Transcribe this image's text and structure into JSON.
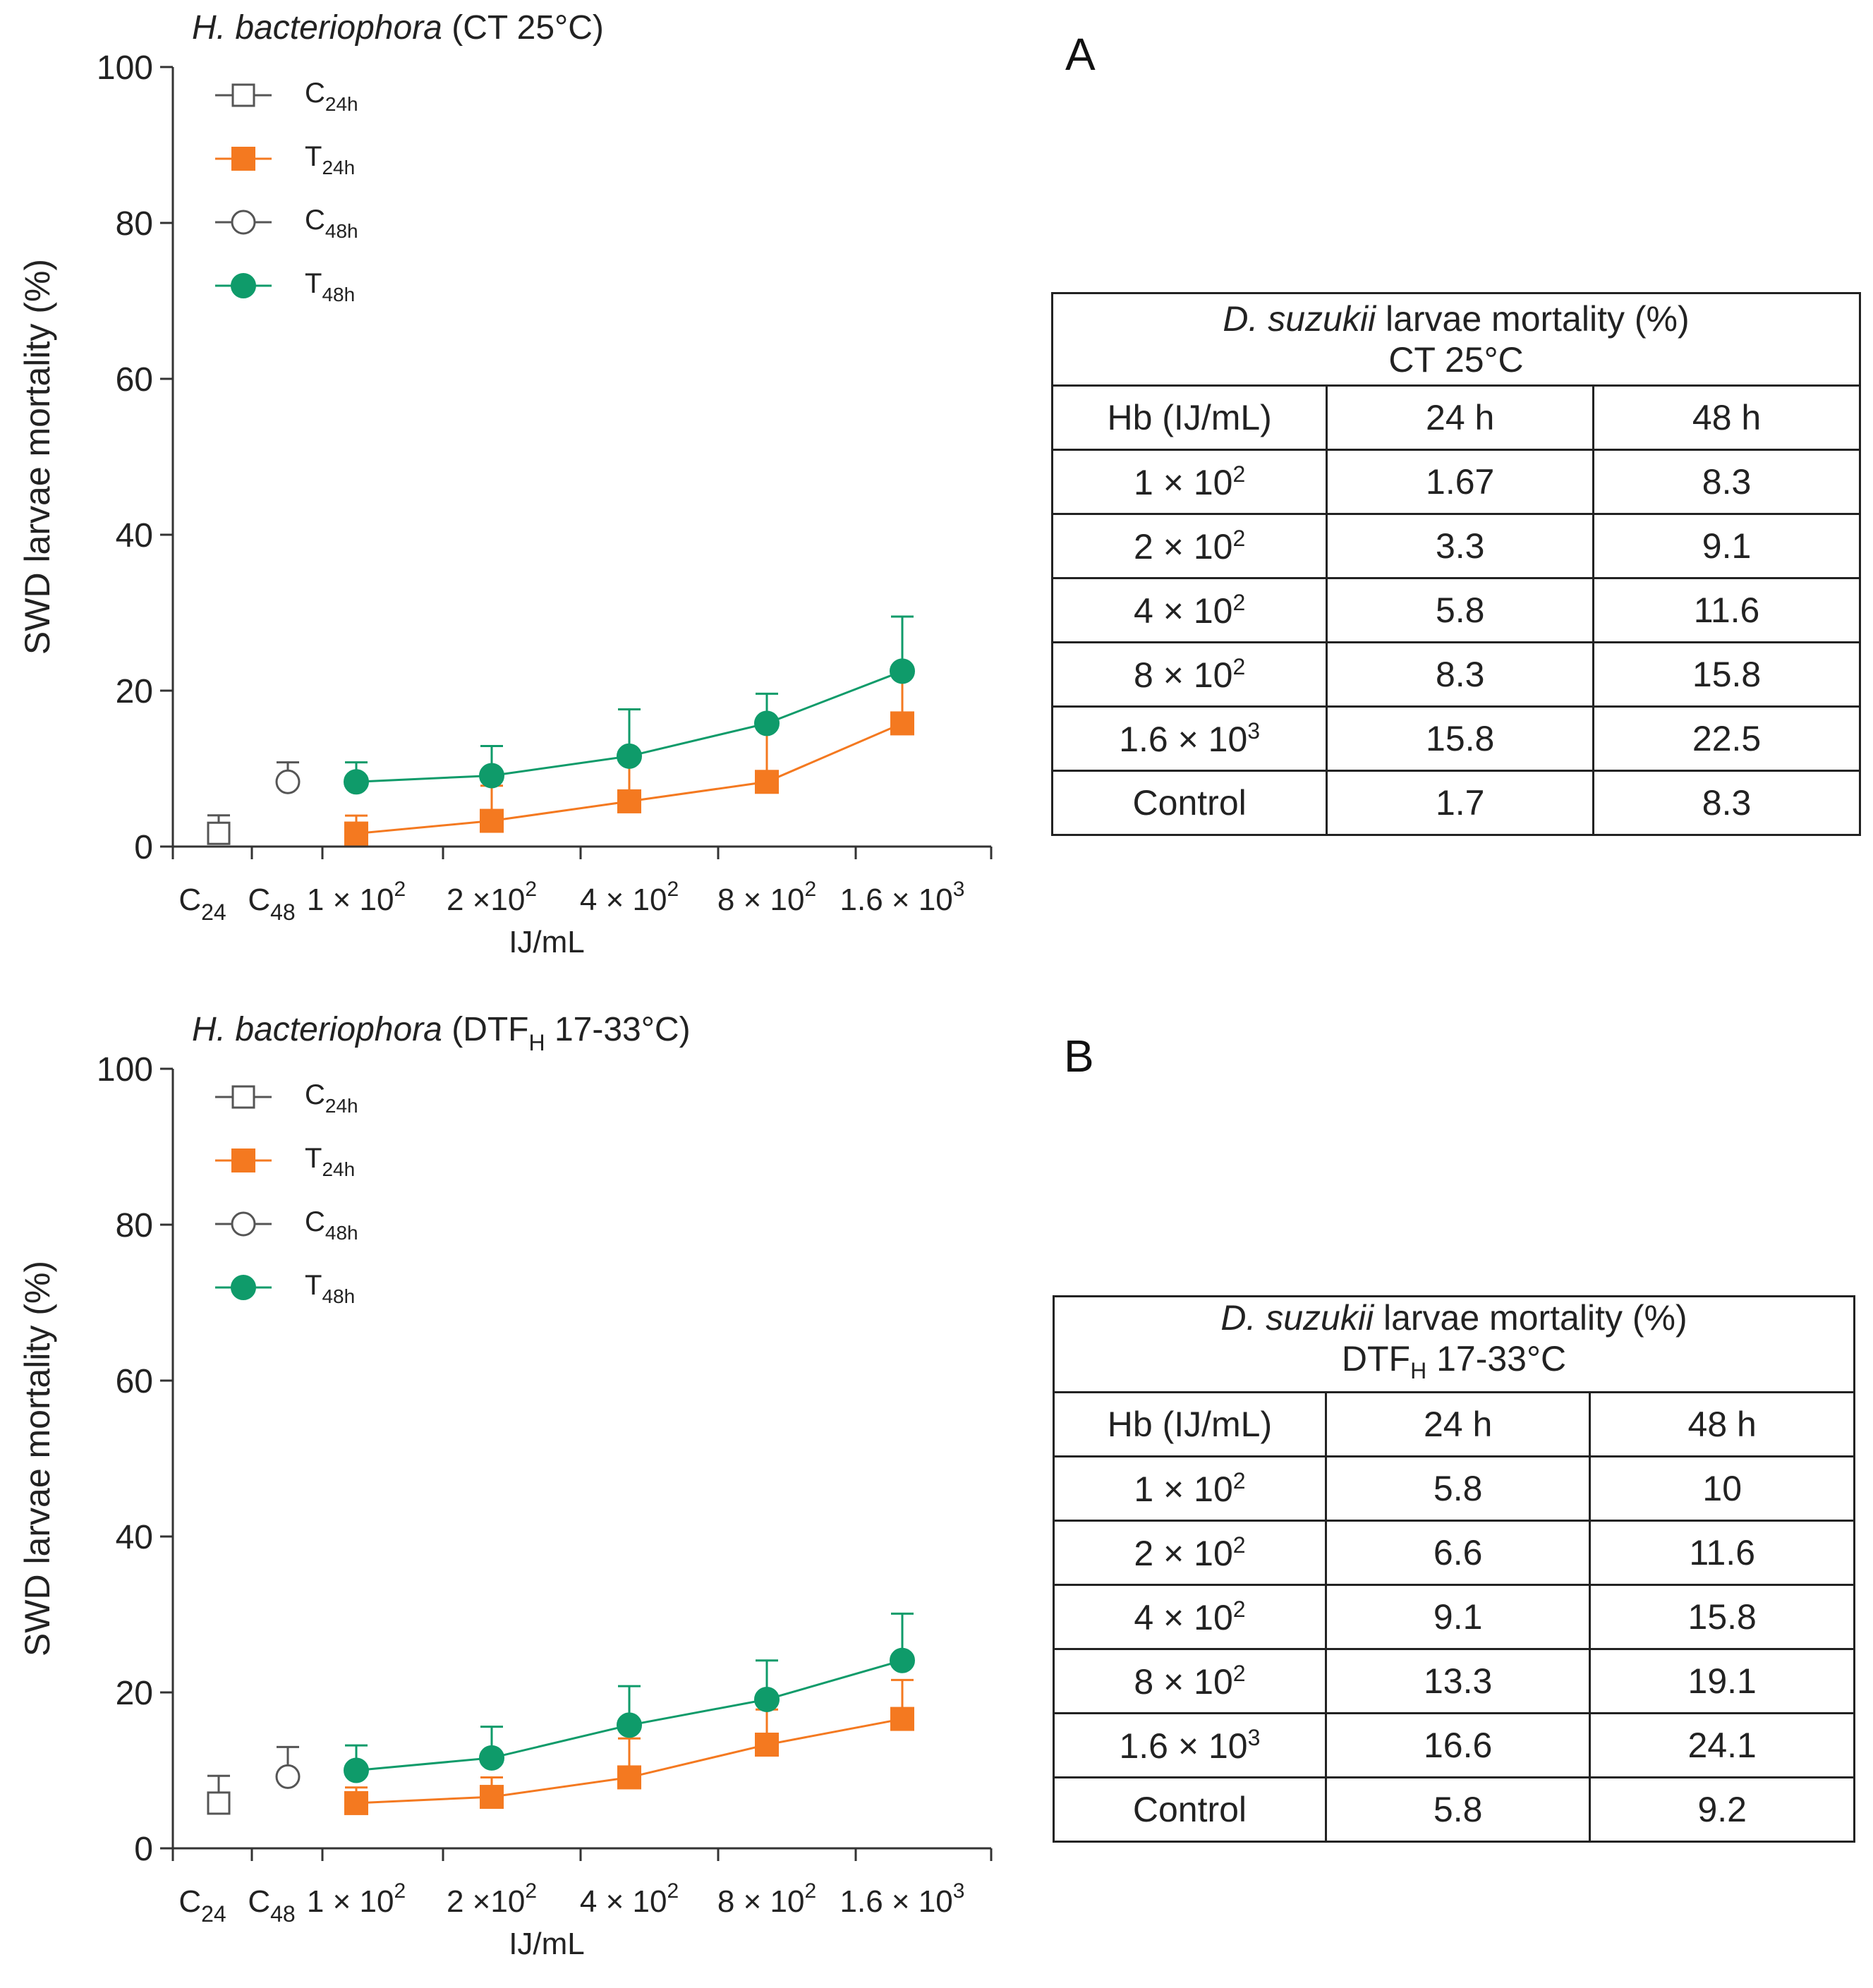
{
  "panels": [
    {
      "letter": "A",
      "table": {
        "header_species": "D. suzukii",
        "header_rest": " larvae mortality (%)",
        "header_cond": "CT 25°C",
        "header_cond_sub": "",
        "header_cond_tail": "",
        "col_headers": [
          "Hb (IJ/mL)",
          "24 h",
          "48 h"
        ],
        "rows": [
          {
            "dose": "1 × 10",
            "exp": "2",
            "v24": "1.67",
            "v48": "8.3"
          },
          {
            "dose": "2 × 10",
            "exp": "2",
            "v24": "3.3",
            "v48": "9.1"
          },
          {
            "dose": "4 × 10",
            "exp": "2",
            "v24": "5.8",
            "v48": "11.6"
          },
          {
            "dose": "8 × 10",
            "exp": "2",
            "v24": "8.3",
            "v48": "15.8"
          },
          {
            "dose": "1.6 × 10",
            "exp": "3",
            "v24": "15.8",
            "v48": "22.5"
          },
          {
            "dose": "Control",
            "exp": "",
            "v24": "1.7",
            "v48": "8.3"
          }
        ]
      }
    },
    {
      "letter": "B",
      "table": {
        "header_species": "D. suzukii",
        "header_rest": " larvae mortality (%)",
        "header_cond": "DTF",
        "header_cond_sub": "H",
        "header_cond_tail": " 17-33°C",
        "col_headers": [
          "Hb (IJ/mL)",
          "24 h",
          "48 h"
        ],
        "rows": [
          {
            "dose": "1 × 10",
            "exp": "2",
            "v24": "5.8",
            "v48": "10"
          },
          {
            "dose": "2 × 10",
            "exp": "2",
            "v24": "6.6",
            "v48": "11.6"
          },
          {
            "dose": "4 × 10",
            "exp": "2",
            "v24": "9.1",
            "v48": "15.8"
          },
          {
            "dose": "8 × 10",
            "exp": "2",
            "v24": "13.3",
            "v48": "19.1"
          },
          {
            "dose": "1.6 × 10",
            "exp": "3",
            "v24": "16.6",
            "v48": "24.1"
          },
          {
            "dose": "Control",
            "exp": "",
            "v24": "5.8",
            "v48": "9.2"
          }
        ]
      }
    }
  ],
  "chart_data": [
    {
      "type": "line",
      "title_italic": "H. bacteriophora",
      "title_rest": " (CT 25°C)",
      "title_sub": "",
      "title_tail": "",
      "xlabel": "IJ/mL",
      "ylabel": "SWD larvae mortality (%)",
      "ylim": [
        0,
        100
      ],
      "yticks": [
        0,
        20,
        40,
        60,
        80,
        100
      ],
      "x_tick_labels": [
        {
          "base": "C",
          "sub": "24",
          "sup": ""
        },
        {
          "base": "C",
          "sub": "48",
          "sup": ""
        },
        {
          "base": "1 × 10",
          "sub": "",
          "sup": "2"
        },
        {
          "base": "2 ×10",
          "sub": "",
          "sup": "2"
        },
        {
          "base": "4 × 10",
          "sub": "",
          "sup": "2"
        },
        {
          "base": "8 × 10",
          "sub": "",
          "sup": "2"
        },
        {
          "base": "1.6 × 10",
          "sub": "",
          "sup": "3"
        }
      ],
      "legend": [
        {
          "base": "C",
          "sub": "24h",
          "marker": "open-square",
          "color": "#555555"
        },
        {
          "base": "T",
          "sub": "24h",
          "marker": "filled-square",
          "color": "#f47920"
        },
        {
          "base": "C",
          "sub": "48h",
          "marker": "open-circle",
          "color": "#555555"
        },
        {
          "base": "T",
          "sub": "48h",
          "marker": "filled-circle",
          "color": "#0f9b6a"
        }
      ],
      "controls": [
        {
          "name": "C24h",
          "category": "C24",
          "value": 1.7,
          "error": 2.3
        },
        {
          "name": "C48h",
          "category": "C48",
          "value": 8.3,
          "error": 2.5
        }
      ],
      "categories": [
        "1 × 10^2",
        "2 × 10^2",
        "4 × 10^2",
        "8 × 10^2",
        "1.6 × 10^3"
      ],
      "series": [
        {
          "name": "T24h",
          "color": "#f47920",
          "values": [
            1.67,
            3.3,
            5.8,
            8.3,
            15.8
          ],
          "errors": [
            2.3,
            4.5,
            5.5,
            7.0,
            6.5
          ]
        },
        {
          "name": "T48h",
          "color": "#0f9b6a",
          "values": [
            8.3,
            9.1,
            11.6,
            15.8,
            22.5
          ],
          "errors": [
            2.5,
            3.8,
            6.0,
            3.8,
            7.0
          ]
        }
      ]
    },
    {
      "type": "line",
      "title_italic": "H. bacteriophora",
      "title_rest": " (DTF",
      "title_sub": "H",
      "title_tail": " 17-33°C)",
      "xlabel": "IJ/mL",
      "ylabel": "SWD larvae mortality (%)",
      "ylim": [
        0,
        100
      ],
      "yticks": [
        0,
        20,
        40,
        60,
        80,
        100
      ],
      "x_tick_labels": [
        {
          "base": "C",
          "sub": "24",
          "sup": ""
        },
        {
          "base": "C",
          "sub": "48",
          "sup": ""
        },
        {
          "base": "1 × 10",
          "sub": "",
          "sup": "2"
        },
        {
          "base": "2 ×10",
          "sub": "",
          "sup": "2"
        },
        {
          "base": "4 × 10",
          "sub": "",
          "sup": "2"
        },
        {
          "base": "8 × 10",
          "sub": "",
          "sup": "2"
        },
        {
          "base": "1.6 × 10",
          "sub": "",
          "sup": "3"
        }
      ],
      "legend": [
        {
          "base": "C",
          "sub": "24h",
          "marker": "open-square",
          "color": "#555555"
        },
        {
          "base": "T",
          "sub": "24h",
          "marker": "filled-square",
          "color": "#f47920"
        },
        {
          "base": "C",
          "sub": "48h",
          "marker": "open-circle",
          "color": "#555555"
        },
        {
          "base": "T",
          "sub": "48h",
          "marker": "filled-circle",
          "color": "#0f9b6a"
        }
      ],
      "controls": [
        {
          "name": "C24h",
          "category": "C24",
          "value": 5.8,
          "error": 3.5
        },
        {
          "name": "C48h",
          "category": "C48",
          "value": 9.2,
          "error": 3.8
        }
      ],
      "categories": [
        "1 × 10^2",
        "2 × 10^2",
        "4 × 10^2",
        "8 × 10^2",
        "1.6 × 10^3"
      ],
      "series": [
        {
          "name": "T24h",
          "color": "#f47920",
          "values": [
            5.8,
            6.6,
            9.1,
            13.3,
            16.6
          ],
          "errors": [
            2.0,
            2.5,
            5.0,
            4.5,
            5.0
          ]
        },
        {
          "name": "T48h",
          "color": "#0f9b6a",
          "values": [
            10,
            11.6,
            15.8,
            19.1,
            24.1
          ],
          "errors": [
            3.2,
            4.0,
            5.0,
            5.0,
            6.0
          ]
        }
      ]
    }
  ]
}
